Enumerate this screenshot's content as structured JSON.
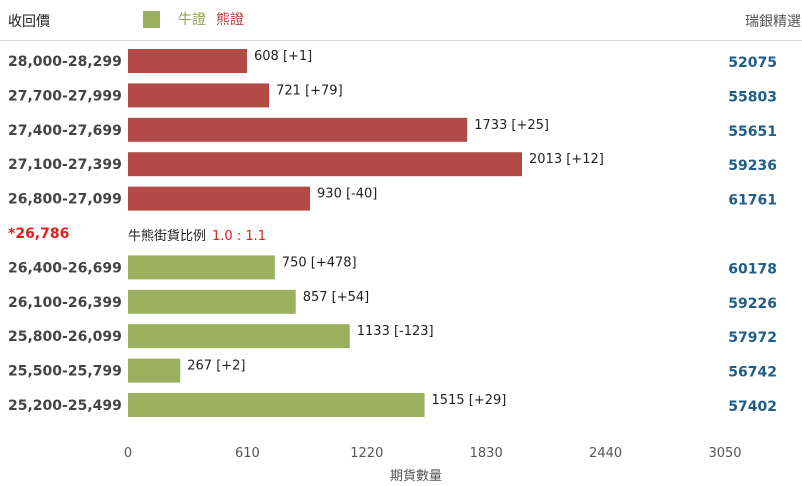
{
  "header": {
    "left_label": "收回價",
    "legend_bull": "牛證",
    "legend_bear": "熊證",
    "right_label": "瑞銀精選"
  },
  "ratio": {
    "label": "牛熊街貨比例",
    "value": "1.0 : 1.1"
  },
  "colors": {
    "bear": "#b24b48",
    "bull": "#9bb15f",
    "right_value": "#1f5e8a",
    "current_price": "#e0201b"
  },
  "chart_data": {
    "type": "bar",
    "orientation": "horizontal",
    "xlabel": "期貨數量",
    "xlim": [
      0,
      3050
    ],
    "xticks": [
      "0",
      "610",
      "1220",
      "1830",
      "2440",
      "3050"
    ],
    "current_price": "*26,786",
    "rows": [
      {
        "range": "28,000-28,299",
        "kind": "bear",
        "value": 608,
        "label": "608 [+1]",
        "right": "52075"
      },
      {
        "range": "27,700-27,999",
        "kind": "bear",
        "value": 721,
        "label": "721 [+79]",
        "right": "55803"
      },
      {
        "range": "27,400-27,699",
        "kind": "bear",
        "value": 1733,
        "label": "1733 [+25]",
        "right": "55651"
      },
      {
        "range": "27,100-27,399",
        "kind": "bear",
        "value": 2013,
        "label": "2013 [+12]",
        "right": "59236"
      },
      {
        "range": "26,800-27,099",
        "kind": "bear",
        "value": 930,
        "label": "930 [-40]",
        "right": "61761"
      },
      {
        "range": "26,400-26,699",
        "kind": "bull",
        "value": 750,
        "label": "750 [+478]",
        "right": "60178"
      },
      {
        "range": "26,100-26,399",
        "kind": "bull",
        "value": 857,
        "label": "857 [+54]",
        "right": "59226"
      },
      {
        "range": "25,800-26,099",
        "kind": "bull",
        "value": 1133,
        "label": "1133 [-123]",
        "right": "57972"
      },
      {
        "range": "25,500-25,799",
        "kind": "bull",
        "value": 267,
        "label": "267 [+2]",
        "right": "56742"
      },
      {
        "range": "25,200-25,499",
        "kind": "bull",
        "value": 1515,
        "label": "1515 [+29]",
        "right": "57402"
      }
    ]
  }
}
